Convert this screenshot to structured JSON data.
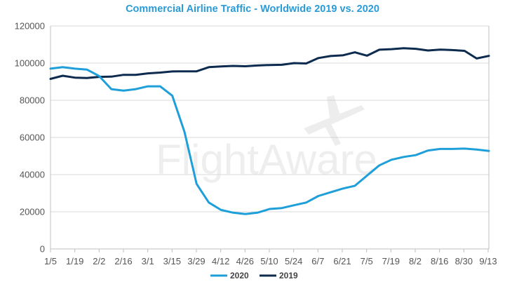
{
  "chart_data": {
    "type": "line",
    "title": "Commercial Airline Traffic - Worldwide 2019 vs. 2020",
    "xlabel": "",
    "ylabel": "",
    "ylim": [
      0,
      120000
    ],
    "yticks": [
      0,
      20000,
      40000,
      60000,
      80000,
      100000,
      120000
    ],
    "grid": true,
    "legend_position": "bottom-left",
    "watermark": "FlightAware",
    "x_tick_labels": [
      "1/5",
      "1/19",
      "2/2",
      "2/16",
      "3/1",
      "3/15",
      "3/29",
      "4/12",
      "4/26",
      "5/10",
      "5/24",
      "6/7",
      "6/21",
      "7/5",
      "7/19",
      "8/2",
      "8/16",
      "8/30",
      "9/13"
    ],
    "series": [
      {
        "name": "2020",
        "color": "#1e9fd9",
        "values": [
          97000,
          97800,
          97000,
          96500,
          93000,
          86000,
          85200,
          86000,
          87500,
          87500,
          82500,
          63000,
          35000,
          25000,
          21000,
          19500,
          18800,
          19500,
          21500,
          22000,
          23500,
          25000,
          28500,
          30500,
          32500,
          34000,
          39500,
          45000,
          48000,
          49500,
          50500,
          53000,
          53800,
          53800,
          54000,
          53500,
          52700
        ]
      },
      {
        "name": "2019",
        "color": "#0d2a4f",
        "values": [
          91500,
          93200,
          92200,
          92000,
          92600,
          92700,
          93700,
          93700,
          94500,
          94900,
          95500,
          95600,
          95600,
          97800,
          98200,
          98500,
          98300,
          98700,
          99000,
          99100,
          100000,
          99800,
          102700,
          103800,
          104200,
          105800,
          104000,
          107200,
          107500,
          108000,
          107700,
          106800,
          107300,
          107000,
          106600,
          102500,
          103900
        ]
      }
    ]
  }
}
